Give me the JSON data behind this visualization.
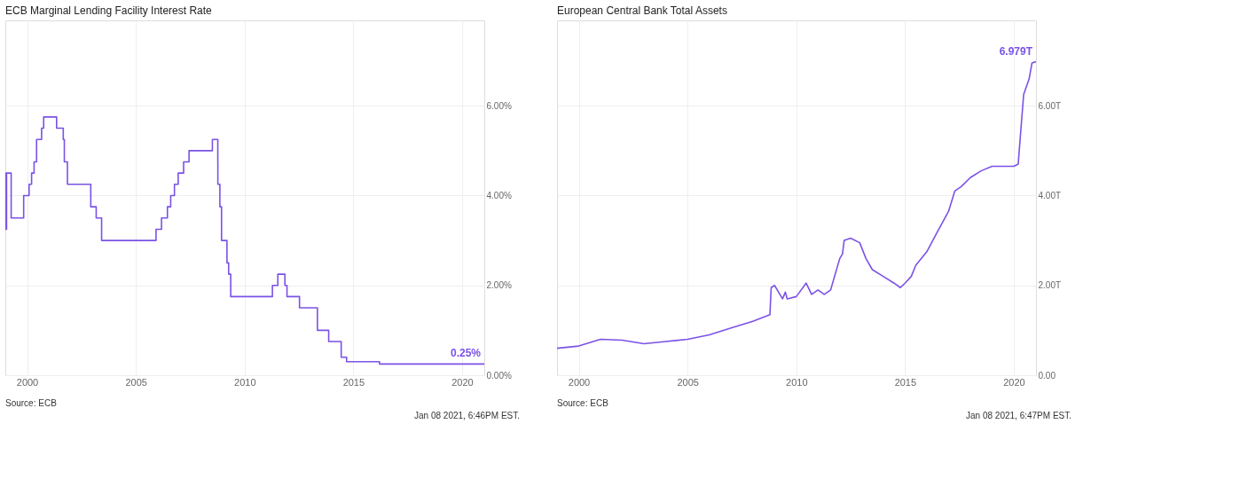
{
  "chart_data": [
    {
      "type": "step",
      "title": "ECB Marginal Lending Facility Interest Rate",
      "x": [
        "1999-01-01",
        "1999-01-04",
        "1999-01-22",
        "1999-04-09",
        "1999-11-05",
        "2000-02-04",
        "2000-03-17",
        "2000-04-28",
        "2000-06-09",
        "2000-09-01",
        "2000-10-06",
        "2001-05-11",
        "2001-08-31",
        "2001-09-18",
        "2001-11-09",
        "2002-12-06",
        "2003-03-07",
        "2003-06-06",
        "2005-12-06",
        "2006-03-08",
        "2006-06-15",
        "2006-08-09",
        "2006-10-11",
        "2006-12-13",
        "2007-03-14",
        "2007-06-13",
        "2008-07-09",
        "2008-10-08",
        "2008-10-09",
        "2008-11-12",
        "2008-12-10",
        "2009-03-11",
        "2009-04-08",
        "2009-05-13",
        "2011-04-13",
        "2011-07-13",
        "2011-11-09",
        "2011-12-14",
        "2012-07-11",
        "2013-05-08",
        "2013-11-13",
        "2014-06-11",
        "2014-09-10",
        "2015-12-09",
        "2016-03-16",
        "2021-01-08"
      ],
      "series": [
        {
          "color": "#7b52e6",
          "values": [
            4.5,
            3.25,
            4.5,
            3.5,
            4.0,
            4.25,
            4.5,
            4.75,
            5.25,
            5.5,
            5.75,
            5.5,
            5.25,
            4.75,
            4.25,
            3.75,
            3.5,
            3.0,
            3.25,
            3.5,
            3.75,
            4.0,
            4.25,
            4.5,
            4.75,
            5.0,
            5.25,
            4.75,
            4.25,
            3.75,
            3.0,
            2.5,
            2.25,
            1.75,
            2.0,
            2.25,
            2.0,
            1.75,
            1.5,
            1.0,
            0.75,
            0.4,
            0.3,
            0.3,
            0.25,
            0.25
          ]
        }
      ],
      "xlim": [
        "1999-01-01",
        "2021-01-08"
      ],
      "xticks": [
        {
          "value": "2000-01-01",
          "label": "2000"
        },
        {
          "value": "2005-01-01",
          "label": "2005"
        },
        {
          "value": "2010-01-01",
          "label": "2010"
        },
        {
          "value": "2015-01-01",
          "label": "2015"
        },
        {
          "value": "2020-01-01",
          "label": "2020"
        }
      ],
      "ylim": [
        0,
        7.9
      ],
      "yticks": [
        {
          "value": 0,
          "label": "0.00%"
        },
        {
          "value": 2,
          "label": "2.00%"
        },
        {
          "value": 4,
          "label": "4.00%"
        },
        {
          "value": 6,
          "label": "6.00%"
        }
      ],
      "grid": true,
      "annotations": [
        {
          "text": "0.25%",
          "x": "2021-01-08",
          "y": 0.25
        },
        "Source: ECB",
        "Jan 08 2021, 6:46PM EST."
      ]
    },
    {
      "type": "line",
      "title": "European Central Bank Total Assets",
      "x": [
        "1999-01-01",
        "2000-01-01",
        "2001-01-01",
        "2002-01-01",
        "2003-01-01",
        "2004-01-01",
        "2005-01-01",
        "2006-01-01",
        "2007-01-01",
        "2008-01-01",
        "2008-10-15",
        "2008-11-05",
        "2009-01-01",
        "2009-05-15",
        "2009-07-01",
        "2009-08-01",
        "2010-01-01",
        "2010-06-15",
        "2010-09-15",
        "2011-01-01",
        "2011-04-15",
        "2011-08-01",
        "2012-01-01",
        "2012-02-15",
        "2012-03-15",
        "2012-07-01",
        "2012-12-01",
        "2013-03-15",
        "2013-07-01",
        "2014-01-01",
        "2014-07-01",
        "2014-10-15",
        "2015-01-01",
        "2015-04-15",
        "2015-07-01",
        "2016-01-01",
        "2016-07-01",
        "2017-01-01",
        "2017-04-15",
        "2017-08-01",
        "2018-01-01",
        "2018-07-01",
        "2019-01-01",
        "2019-07-01",
        "2020-01-01",
        "2020-03-15",
        "2020-05-01",
        "2020-06-15",
        "2020-09-15",
        "2020-11-01",
        "2021-01-08"
      ],
      "series": [
        {
          "color": "#7b52e6",
          "values": [
            0.6,
            0.65,
            0.8,
            0.78,
            0.7,
            0.75,
            0.8,
            0.9,
            1.05,
            1.2,
            1.35,
            1.95,
            2.0,
            1.7,
            1.85,
            1.7,
            1.75,
            2.05,
            1.8,
            1.9,
            1.8,
            1.9,
            2.6,
            2.7,
            3.0,
            3.05,
            2.95,
            2.6,
            2.35,
            2.2,
            2.05,
            1.95,
            2.05,
            2.2,
            2.45,
            2.75,
            3.2,
            3.65,
            4.1,
            4.2,
            4.4,
            4.55,
            4.65,
            4.65,
            4.65,
            4.7,
            5.5,
            6.25,
            6.6,
            6.95,
            6.979
          ]
        }
      ],
      "xlim": [
        "1999-01-01",
        "2021-01-08"
      ],
      "xticks": [
        {
          "value": "2000-01-01",
          "label": "2000"
        },
        {
          "value": "2005-01-01",
          "label": "2005"
        },
        {
          "value": "2010-01-01",
          "label": "2010"
        },
        {
          "value": "2015-01-01",
          "label": "2015"
        },
        {
          "value": "2020-01-01",
          "label": "2020"
        }
      ],
      "ylim": [
        0,
        7.9
      ],
      "yticks": [
        {
          "value": 0,
          "label": "0.00"
        },
        {
          "value": 2,
          "label": "2.00T"
        },
        {
          "value": 4,
          "label": "4.00T"
        },
        {
          "value": 6,
          "label": "6.00T"
        }
      ],
      "grid": true,
      "annotations": [
        {
          "text": "6.979T",
          "x": "2021-01-08",
          "y": 6.979
        },
        "Source: ECB",
        "Jan 08 2021, 6:47PM EST."
      ]
    }
  ]
}
